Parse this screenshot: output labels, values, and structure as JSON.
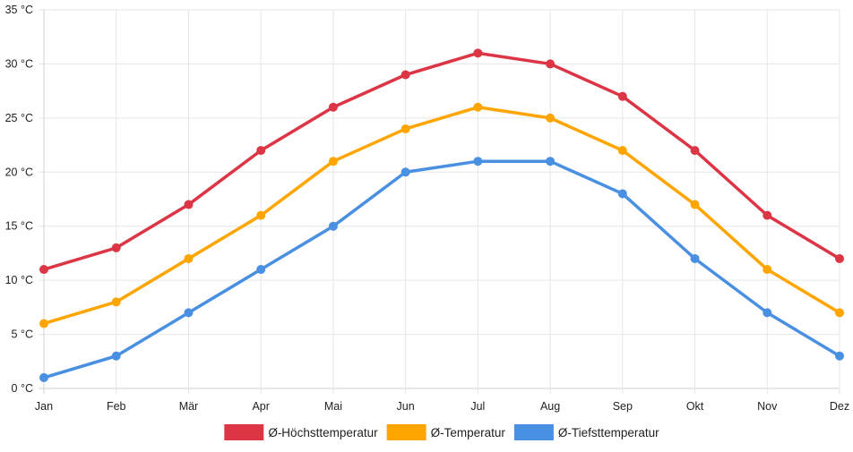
{
  "chart_data": {
    "type": "line",
    "title": "",
    "xlabel": "",
    "ylabel": "",
    "categories": [
      "Jan",
      "Feb",
      "Mär",
      "Apr",
      "Mai",
      "Jun",
      "Jul",
      "Aug",
      "Sep",
      "Okt",
      "Nov",
      "Dez"
    ],
    "ylim": [
      0,
      35
    ],
    "y_ticks": [
      {
        "value": 0,
        "label": "0 °C"
      },
      {
        "value": 5,
        "label": "5 °C"
      },
      {
        "value": 10,
        "label": "10 °C"
      },
      {
        "value": 15,
        "label": "15 °C"
      },
      {
        "value": 20,
        "label": "20 °C"
      },
      {
        "value": 25,
        "label": "25 °C"
      },
      {
        "value": 30,
        "label": "30 °C"
      },
      {
        "value": 35,
        "label": "35 °C"
      }
    ],
    "grid": true,
    "legend_position": "bottom",
    "series": [
      {
        "name": "Ø-Höchsttemperatur",
        "color": "#dc3545",
        "values": [
          11,
          13,
          17,
          22,
          26,
          29,
          31,
          30,
          27,
          22,
          16,
          12
        ]
      },
      {
        "name": "Ø-Temperatur",
        "color": "#ffa500",
        "values": [
          6,
          8,
          12,
          16,
          21,
          24,
          26,
          25,
          22,
          17,
          11,
          7
        ]
      },
      {
        "name": "Ø-Tiefsttemperatur",
        "color": "#4a90e2",
        "values": [
          1,
          3,
          7,
          11,
          15,
          20,
          21,
          21,
          18,
          12,
          7,
          3
        ]
      }
    ]
  }
}
